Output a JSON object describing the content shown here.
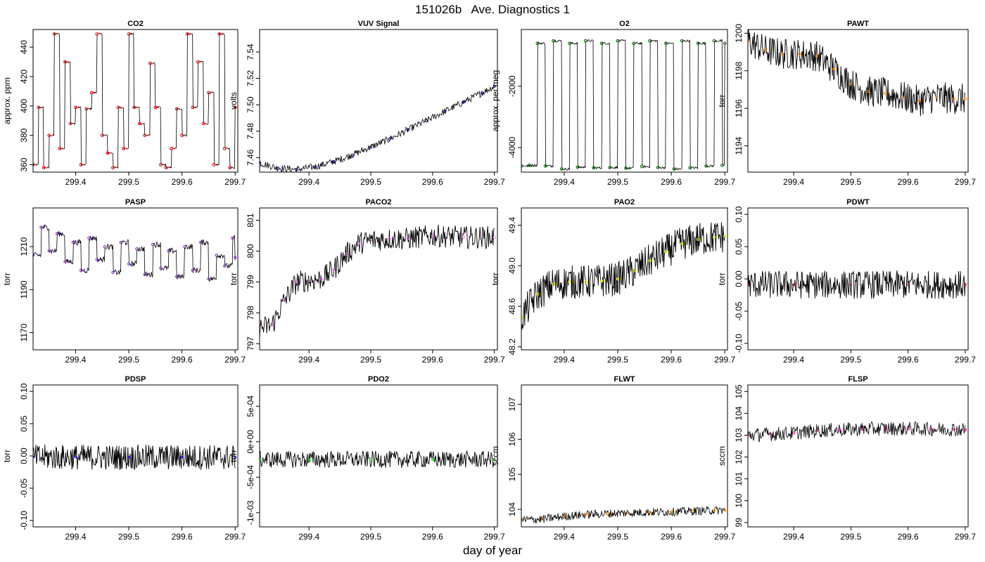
{
  "figure": {
    "title": "151026b   Ave. Diagnostics 1",
    "xlabel": "day of year"
  },
  "colors": {
    "CO2": "#ff0000",
    "VUV Signal": "#000080",
    "O2": "#006400",
    "PAWT": "#ff8c00",
    "PASP": "#8a2be2",
    "PACO2": "#ee82ee",
    "PAO2": "#ffff00",
    "PDWT": "#b22222",
    "PDSP": "#0000ff",
    "PDO2": "#00ff00",
    "FLWT": "#ff8c00",
    "FLSP": "#c71585"
  },
  "chart_data": [
    {
      "type": "line",
      "title": "CO2",
      "xlabel": "",
      "ylabel": "approx. ppm",
      "xlim": [
        299.32,
        299.705
      ],
      "ylim": [
        355,
        452
      ],
      "xticks": [
        "299.4",
        "299.5",
        "299.6",
        "299.7"
      ],
      "yticks": [
        "360",
        "380",
        "400",
        "420",
        "440"
      ],
      "x": [
        299.32,
        299.33,
        299.34,
        299.35,
        299.36,
        299.37,
        299.38,
        299.39,
        299.4,
        299.41,
        299.42,
        299.43,
        299.44,
        299.45,
        299.46,
        299.47,
        299.48,
        299.49,
        299.5,
        299.51,
        299.52,
        299.53,
        299.54,
        299.55,
        299.56,
        299.57,
        299.58,
        299.59,
        299.6,
        299.61,
        299.62,
        299.63,
        299.64,
        299.65,
        299.66,
        299.67,
        299.68,
        299.69,
        299.7
      ],
      "values": [
        360,
        399,
        358,
        380,
        449,
        371,
        430,
        388,
        399,
        360,
        398,
        409,
        449,
        380,
        368,
        358,
        399,
        371,
        449,
        399,
        388,
        380,
        429,
        399,
        360,
        358,
        371,
        398,
        380,
        449,
        399,
        430,
        388,
        409,
        360,
        449,
        371,
        358,
        399
      ]
    },
    {
      "type": "line",
      "title": "VUV Signal",
      "xlabel": "",
      "ylabel": "volts",
      "xlim": [
        299.32,
        299.705
      ],
      "ylim": [
        7.449,
        7.557
      ],
      "xticks": [
        "299.4",
        "299.5",
        "299.6",
        "299.7"
      ],
      "yticks": [
        "7.46",
        "7.48",
        "7.50",
        "7.52",
        "7.54"
      ],
      "x": [
        299.32,
        299.35,
        299.38,
        299.41,
        299.44,
        299.47,
        299.5,
        299.53,
        299.56,
        299.59,
        299.62,
        299.65,
        299.68,
        299.7
      ],
      "values": [
        7.456,
        7.452,
        7.451,
        7.453,
        7.457,
        7.462,
        7.468,
        7.474,
        7.481,
        7.488,
        7.495,
        7.502,
        7.509,
        7.514
      ]
    },
    {
      "type": "line",
      "title": "O2",
      "xlabel": "",
      "ylabel": "approx. per meg",
      "xlim": [
        299.32,
        299.705
      ],
      "ylim": [
        -4800,
        -150
      ],
      "xticks": [
        "299.4",
        "299.5",
        "299.6",
        "299.7"
      ],
      "yticks": [
        "-4000",
        "-2000"
      ],
      "x": [
        299.32,
        299.335,
        299.35,
        299.365,
        299.38,
        299.395,
        299.41,
        299.425,
        299.44,
        299.455,
        299.47,
        299.485,
        299.5,
        299.515,
        299.53,
        299.545,
        299.56,
        299.575,
        299.59,
        299.605,
        299.62,
        299.635,
        299.65,
        299.665,
        299.68,
        299.695,
        299.7
      ],
      "values": [
        -4600,
        -4580,
        -600,
        -4600,
        -520,
        -4700,
        -600,
        -4640,
        -520,
        -4660,
        -600,
        -4650,
        -520,
        -4670,
        -600,
        -4620,
        -520,
        -4650,
        -600,
        -4700,
        -520,
        -4660,
        -600,
        -4600,
        -520,
        -4580,
        -600
      ]
    },
    {
      "type": "line",
      "title": "PAWT",
      "xlabel": "",
      "ylabel": "torr",
      "xlim": [
        299.32,
        299.705
      ],
      "ylim": [
        1192.6,
        1200.2
      ],
      "xticks": [
        "299.4",
        "299.5",
        "299.6",
        "299.7"
      ],
      "yticks": [
        "1194",
        "1196",
        "1198",
        "1200"
      ],
      "x": [
        299.32,
        299.35,
        299.38,
        299.41,
        299.44,
        299.47,
        299.5,
        299.53,
        299.56,
        299.59,
        299.62,
        299.65,
        299.68,
        299.7
      ],
      "values": [
        1199.6,
        1199.1,
        1198.9,
        1198.9,
        1198.8,
        1198.1,
        1197.3,
        1196.9,
        1196.8,
        1196.6,
        1196.4,
        1196.6,
        1196.5,
        1196.5
      ]
    },
    {
      "type": "line",
      "title": "PASP",
      "xlabel": "",
      "ylabel": "torr",
      "xlim": [
        299.32,
        299.705
      ],
      "ylim": [
        1162,
        1228
      ],
      "xticks": [
        "299.4",
        "299.5",
        "299.6",
        "299.7"
      ],
      "yticks": [
        "1170",
        "1190",
        "1210"
      ],
      "x": [
        299.32,
        299.335,
        299.35,
        299.365,
        299.38,
        299.395,
        299.41,
        299.425,
        299.44,
        299.455,
        299.47,
        299.485,
        299.5,
        299.515,
        299.53,
        299.545,
        299.56,
        299.575,
        299.59,
        299.605,
        299.62,
        299.635,
        299.65,
        299.665,
        299.68,
        299.695,
        299.7
      ],
      "values": [
        1206,
        1219,
        1208,
        1216,
        1203,
        1212,
        1199,
        1214,
        1204,
        1210,
        1198,
        1212,
        1202,
        1209,
        1197,
        1211,
        1200,
        1208,
        1196,
        1210,
        1199,
        1212,
        1195,
        1206,
        1201,
        1214,
        1205
      ]
    },
    {
      "type": "line",
      "title": "PACO2",
      "xlabel": "",
      "ylabel": "torr",
      "xlim": [
        299.32,
        299.705
      ],
      "ylim": [
        796.8,
        801.4
      ],
      "xticks": [
        "299.4",
        "299.5",
        "299.6",
        "299.7"
      ],
      "yticks": [
        "797",
        "798",
        "799",
        "800",
        "801"
      ],
      "x": [
        299.32,
        299.34,
        299.36,
        299.38,
        299.4,
        299.42,
        299.44,
        299.46,
        299.48,
        299.5,
        299.53,
        299.56,
        299.6,
        299.65,
        299.7
      ],
      "values": [
        797.5,
        797.6,
        798.4,
        799.0,
        799.05,
        799.1,
        799.4,
        799.9,
        800.25,
        800.35,
        800.4,
        800.4,
        800.5,
        800.45,
        800.45
      ]
    },
    {
      "type": "line",
      "title": "PAO2",
      "xlabel": "",
      "ylabel": "torr",
      "xlim": [
        299.32,
        299.705
      ],
      "ylim": [
        48.17,
        49.57
      ],
      "xticks": [
        "299.4",
        "299.5",
        "299.6",
        "299.7"
      ],
      "yticks": [
        "48.2",
        "48.6",
        "49.0",
        "49.4"
      ],
      "x": [
        299.32,
        299.35,
        299.38,
        299.41,
        299.44,
        299.47,
        299.5,
        299.53,
        299.56,
        299.59,
        299.62,
        299.65,
        299.68,
        299.7
      ],
      "values": [
        48.49,
        48.72,
        48.82,
        48.84,
        48.84,
        48.85,
        48.87,
        48.95,
        49.05,
        49.14,
        49.22,
        49.26,
        49.28,
        49.29
      ]
    },
    {
      "type": "line",
      "title": "PDWT",
      "xlabel": "",
      "ylabel": "torr",
      "xlim": [
        299.32,
        299.705
      ],
      "ylim": [
        -0.11,
        0.11
      ],
      "xticks": [
        "299.4",
        "299.5",
        "299.6",
        "299.7"
      ],
      "yticks": [
        "-0.10",
        "-0.05",
        "0.00",
        "0.05",
        "0.10"
      ],
      "x": [
        299.32,
        299.4,
        299.5,
        299.6,
        299.7
      ],
      "values": [
        -0.009,
        -0.009,
        -0.009,
        -0.009,
        -0.009
      ]
    },
    {
      "type": "line",
      "title": "PDSP",
      "xlabel": "",
      "ylabel": "torr",
      "xlim": [
        299.32,
        299.705
      ],
      "ylim": [
        -0.11,
        0.11
      ],
      "xticks": [
        "299.4",
        "299.5",
        "299.6",
        "299.7"
      ],
      "yticks": [
        "-0.10",
        "-0.05",
        "0.00",
        "0.05",
        "0.10"
      ],
      "x": [
        299.32,
        299.4,
        299.5,
        299.6,
        299.7
      ],
      "values": [
        -0.002,
        -0.002,
        -0.002,
        -0.002,
        -0.002
      ]
    },
    {
      "type": "line",
      "title": "PDO2",
      "xlabel": "",
      "ylabel": "torr",
      "xlim": [
        299.32,
        299.705
      ],
      "ylim": [
        -0.0012,
        0.0008
      ],
      "xticks": [
        "299.4",
        "299.5",
        "299.6",
        "299.7"
      ],
      "yticks": [
        "-1e-03",
        "-5e-04",
        "0e+00",
        "5e-04"
      ],
      "x": [
        299.32,
        299.4,
        299.5,
        299.6,
        299.7
      ],
      "values": [
        -0.00025,
        -0.00025,
        -0.00025,
        -0.00025,
        -0.00025
      ]
    },
    {
      "type": "line",
      "title": "FLWT",
      "xlabel": "",
      "ylabel": "sccm",
      "xlim": [
        299.32,
        299.705
      ],
      "ylim": [
        103.5,
        107.55
      ],
      "xticks": [
        "299.4",
        "299.5",
        "299.6",
        "299.7"
      ],
      "yticks": [
        "104",
        "105",
        "106",
        "107"
      ],
      "x": [
        299.32,
        299.36,
        299.4,
        299.44,
        299.48,
        299.52,
        299.56,
        299.6,
        299.64,
        299.68,
        299.7
      ],
      "values": [
        103.7,
        103.72,
        103.8,
        103.85,
        103.88,
        103.9,
        103.92,
        103.93,
        103.95,
        103.97,
        103.98
      ]
    },
    {
      "type": "line",
      "title": "FLSP",
      "xlabel": "",
      "ylabel": "sccm",
      "xlim": [
        299.32,
        299.705
      ],
      "ylim": [
        98.8,
        105.3
      ],
      "xticks": [
        "299.4",
        "299.5",
        "299.6",
        "299.7"
      ],
      "yticks": [
        "99",
        "100",
        "101",
        "102",
        "103",
        "104",
        "105"
      ],
      "x": [
        299.32,
        299.36,
        299.4,
        299.44,
        299.48,
        299.52,
        299.56,
        299.6,
        299.64,
        299.68,
        299.7
      ],
      "values": [
        103.0,
        103.05,
        103.1,
        103.2,
        103.25,
        103.28,
        103.3,
        103.3,
        103.28,
        103.27,
        103.25
      ]
    }
  ]
}
